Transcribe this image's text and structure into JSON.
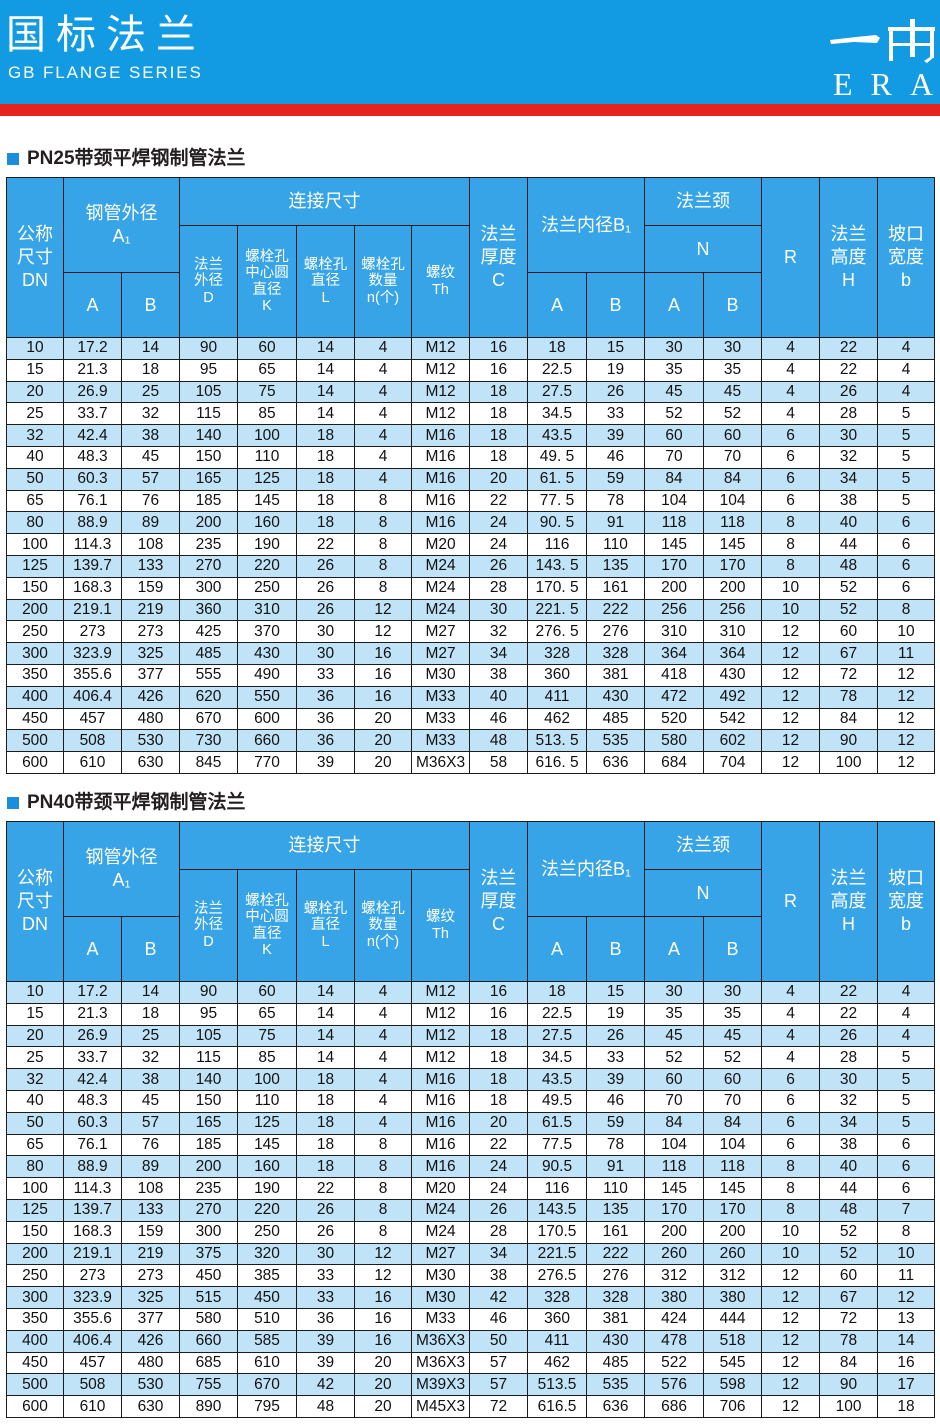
{
  "page_header": {
    "title": "国标法兰",
    "subtitle": "GB FLANGE SERIES",
    "logo_mark": "一冉",
    "logo_text": "ERA"
  },
  "colors": {
    "header_blue": "#129be2",
    "accent_red": "#e52420",
    "table_header_blue": "#36a4e6",
    "row_shade_blue": "#c0e3f7",
    "section_marker_blue": "#1b8edb",
    "grid_line": "#1c1c1c"
  },
  "column_header": {
    "dn": [
      "公称",
      "尺寸",
      "DN"
    ],
    "pipe_od": [
      "钢管外径",
      "A₁"
    ],
    "pipe_od_a": "A",
    "pipe_od_b": "B",
    "connection": "连接尺寸",
    "flange_od": [
      "法兰",
      "外径",
      "D"
    ],
    "bolt_circle": [
      "螺栓孔",
      "中心圆",
      "直径",
      "K"
    ],
    "bolt_hole": [
      "螺栓孔",
      "直径",
      "L"
    ],
    "bolt_count": [
      "螺栓孔",
      "数量",
      "n(个)"
    ],
    "thread": [
      "螺纹",
      "Th"
    ],
    "thickness": [
      "法兰",
      "厚度",
      "C"
    ],
    "bore": "法兰内径B₁",
    "bore_a": "A",
    "bore_b": "B",
    "neck": "法兰颈",
    "neck_n": "N",
    "neck_a": "A",
    "neck_b": "B",
    "radius": "R",
    "height": [
      "法兰",
      "高度",
      "H"
    ],
    "bevel": [
      "坡口",
      "宽度",
      "b"
    ]
  },
  "tables": [
    {
      "title": "PN25带颈平焊钢制管法兰",
      "rows": [
        [
          "10",
          "17.2",
          "14",
          "90",
          "60",
          "14",
          "4",
          "M12",
          "16",
          "18",
          "15",
          "30",
          "30",
          "4",
          "22",
          "4"
        ],
        [
          "15",
          "21.3",
          "18",
          "95",
          "65",
          "14",
          "4",
          "M12",
          "16",
          "22.5",
          "19",
          "35",
          "35",
          "4",
          "22",
          "4"
        ],
        [
          "20",
          "26.9",
          "25",
          "105",
          "75",
          "14",
          "4",
          "M12",
          "18",
          "27.5",
          "26",
          "45",
          "45",
          "4",
          "26",
          "4"
        ],
        [
          "25",
          "33.7",
          "32",
          "115",
          "85",
          "14",
          "4",
          "M12",
          "18",
          "34.5",
          "33",
          "52",
          "52",
          "4",
          "28",
          "5"
        ],
        [
          "32",
          "42.4",
          "38",
          "140",
          "100",
          "18",
          "4",
          "M16",
          "18",
          "43.5",
          "39",
          "60",
          "60",
          "6",
          "30",
          "5"
        ],
        [
          "40",
          "48.3",
          "45",
          "150",
          "110",
          "18",
          "4",
          "M16",
          "18",
          "49. 5",
          "46",
          "70",
          "70",
          "6",
          "32",
          "5"
        ],
        [
          "50",
          "60.3",
          "57",
          "165",
          "125",
          "18",
          "4",
          "M16",
          "20",
          "61. 5",
          "59",
          "84",
          "84",
          "6",
          "34",
          "5"
        ],
        [
          "65",
          "76.1",
          "76",
          "185",
          "145",
          "18",
          "8",
          "M16",
          "22",
          "77. 5",
          "78",
          "104",
          "104",
          "6",
          "38",
          "5"
        ],
        [
          "80",
          "88.9",
          "89",
          "200",
          "160",
          "18",
          "8",
          "M16",
          "24",
          "90. 5",
          "91",
          "118",
          "118",
          "8",
          "40",
          "6"
        ],
        [
          "100",
          "114.3",
          "108",
          "235",
          "190",
          "22",
          "8",
          "M20",
          "24",
          "116",
          "110",
          "145",
          "145",
          "8",
          "44",
          "6"
        ],
        [
          "125",
          "139.7",
          "133",
          "270",
          "220",
          "26",
          "8",
          "M24",
          "26",
          "143. 5",
          "135",
          "170",
          "170",
          "8",
          "48",
          "6"
        ],
        [
          "150",
          "168.3",
          "159",
          "300",
          "250",
          "26",
          "8",
          "M24",
          "28",
          "170. 5",
          "161",
          "200",
          "200",
          "10",
          "52",
          "6"
        ],
        [
          "200",
          "219.1",
          "219",
          "360",
          "310",
          "26",
          "12",
          "M24",
          "30",
          "221. 5",
          "222",
          "256",
          "256",
          "10",
          "52",
          "8"
        ],
        [
          "250",
          "273",
          "273",
          "425",
          "370",
          "30",
          "12",
          "M27",
          "32",
          "276. 5",
          "276",
          "310",
          "310",
          "12",
          "60",
          "10"
        ],
        [
          "300",
          "323.9",
          "325",
          "485",
          "430",
          "30",
          "16",
          "M27",
          "34",
          "328",
          "328",
          "364",
          "364",
          "12",
          "67",
          "11"
        ],
        [
          "350",
          "355.6",
          "377",
          "555",
          "490",
          "33",
          "16",
          "M30",
          "38",
          "360",
          "381",
          "418",
          "430",
          "12",
          "72",
          "12"
        ],
        [
          "400",
          "406.4",
          "426",
          "620",
          "550",
          "36",
          "16",
          "M33",
          "40",
          "411",
          "430",
          "472",
          "492",
          "12",
          "78",
          "12"
        ],
        [
          "450",
          "457",
          "480",
          "670",
          "600",
          "36",
          "20",
          "M33",
          "46",
          "462",
          "485",
          "520",
          "542",
          "12",
          "84",
          "12"
        ],
        [
          "500",
          "508",
          "530",
          "730",
          "660",
          "36",
          "20",
          "M33",
          "48",
          "513. 5",
          "535",
          "580",
          "602",
          "12",
          "90",
          "12"
        ],
        [
          "600",
          "610",
          "630",
          "845",
          "770",
          "39",
          "20",
          "M36X3",
          "58",
          "616. 5",
          "636",
          "684",
          "704",
          "12",
          "100",
          "12"
        ]
      ]
    },
    {
      "title": "PN40带颈平焊钢制管法兰",
      "rows": [
        [
          "10",
          "17.2",
          "14",
          "90",
          "60",
          "14",
          "4",
          "M12",
          "16",
          "18",
          "15",
          "30",
          "30",
          "4",
          "22",
          "4"
        ],
        [
          "15",
          "21.3",
          "18",
          "95",
          "65",
          "14",
          "4",
          "M12",
          "16",
          "22.5",
          "19",
          "35",
          "35",
          "4",
          "22",
          "4"
        ],
        [
          "20",
          "26.9",
          "25",
          "105",
          "75",
          "14",
          "4",
          "M12",
          "18",
          "27.5",
          "26",
          "45",
          "45",
          "4",
          "26",
          "4"
        ],
        [
          "25",
          "33.7",
          "32",
          "115",
          "85",
          "14",
          "4",
          "M12",
          "18",
          "34.5",
          "33",
          "52",
          "52",
          "4",
          "28",
          "5"
        ],
        [
          "32",
          "42.4",
          "38",
          "140",
          "100",
          "18",
          "4",
          "M16",
          "18",
          "43.5",
          "39",
          "60",
          "60",
          "6",
          "30",
          "5"
        ],
        [
          "40",
          "48.3",
          "45",
          "150",
          "110",
          "18",
          "4",
          "M16",
          "18",
          "49.5",
          "46",
          "70",
          "70",
          "6",
          "32",
          "5"
        ],
        [
          "50",
          "60.3",
          "57",
          "165",
          "125",
          "18",
          "4",
          "M16",
          "20",
          "61.5",
          "59",
          "84",
          "84",
          "6",
          "34",
          "5"
        ],
        [
          "65",
          "76.1",
          "76",
          "185",
          "145",
          "18",
          "8",
          "M16",
          "22",
          "77.5",
          "78",
          "104",
          "104",
          "6",
          "38",
          "6"
        ],
        [
          "80",
          "88.9",
          "89",
          "200",
          "160",
          "18",
          "8",
          "M16",
          "24",
          "90.5",
          "91",
          "118",
          "118",
          "8",
          "40",
          "6"
        ],
        [
          "100",
          "114.3",
          "108",
          "235",
          "190",
          "22",
          "8",
          "M20",
          "24",
          "116",
          "110",
          "145",
          "145",
          "8",
          "44",
          "6"
        ],
        [
          "125",
          "139.7",
          "133",
          "270",
          "220",
          "26",
          "8",
          "M24",
          "26",
          "143.5",
          "135",
          "170",
          "170",
          "8",
          "48",
          "7"
        ],
        [
          "150",
          "168.3",
          "159",
          "300",
          "250",
          "26",
          "8",
          "M24",
          "28",
          "170.5",
          "161",
          "200",
          "200",
          "10",
          "52",
          "8"
        ],
        [
          "200",
          "219.1",
          "219",
          "375",
          "320",
          "30",
          "12",
          "M27",
          "34",
          "221.5",
          "222",
          "260",
          "260",
          "10",
          "52",
          "10"
        ],
        [
          "250",
          "273",
          "273",
          "450",
          "385",
          "33",
          "12",
          "M30",
          "38",
          "276.5",
          "276",
          "312",
          "312",
          "12",
          "60",
          "11"
        ],
        [
          "300",
          "323.9",
          "325",
          "515",
          "450",
          "33",
          "16",
          "M30",
          "42",
          "328",
          "328",
          "380",
          "380",
          "12",
          "67",
          "12"
        ],
        [
          "350",
          "355.6",
          "377",
          "580",
          "510",
          "36",
          "16",
          "M33",
          "46",
          "360",
          "381",
          "424",
          "444",
          "12",
          "72",
          "13"
        ],
        [
          "400",
          "406.4",
          "426",
          "660",
          "585",
          "39",
          "16",
          "M36X3",
          "50",
          "411",
          "430",
          "478",
          "518",
          "12",
          "78",
          "14"
        ],
        [
          "450",
          "457",
          "480",
          "685",
          "610",
          "39",
          "20",
          "M36X3",
          "57",
          "462",
          "485",
          "522",
          "545",
          "12",
          "84",
          "16"
        ],
        [
          "500",
          "508",
          "530",
          "755",
          "670",
          "42",
          "20",
          "M39X3",
          "57",
          "513.5",
          "535",
          "576",
          "598",
          "12",
          "90",
          "17"
        ],
        [
          "600",
          "610",
          "630",
          "890",
          "795",
          "48",
          "20",
          "M45X3",
          "72",
          "616.5",
          "636",
          "686",
          "706",
          "12",
          "100",
          "18"
        ]
      ]
    }
  ]
}
